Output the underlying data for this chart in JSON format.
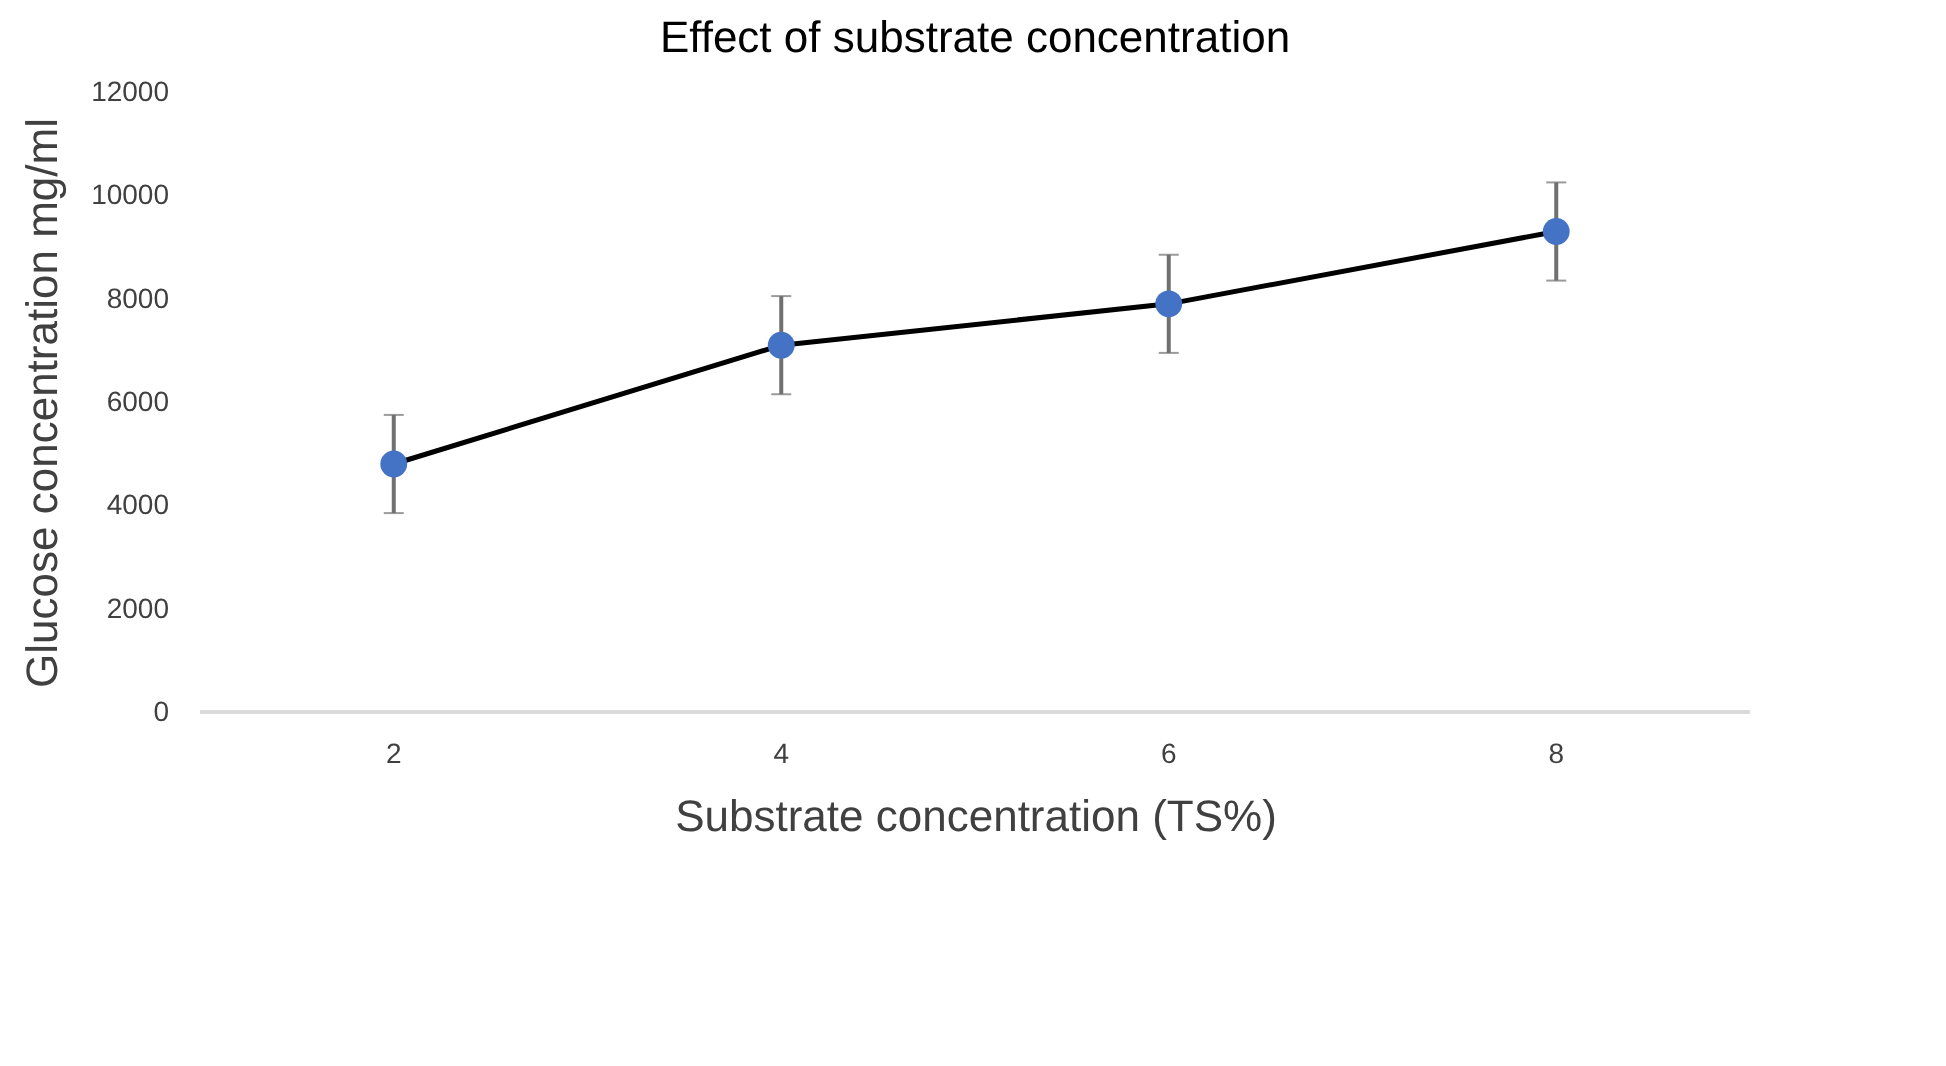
{
  "chart_data": {
    "type": "line",
    "title": "Effect of substrate concentration",
    "xlabel": "Substrate concentration (TS%)",
    "ylabel": "Glucose concentration mg/ml",
    "categories": [
      "2",
      "4",
      "6",
      "8"
    ],
    "series": [
      {
        "color": "#4472c4",
        "values": [
          4800,
          7100,
          7900,
          9300
        ],
        "errors": [
          950,
          950,
          950,
          950
        ]
      }
    ],
    "ylim": [
      0,
      12000
    ],
    "yticks": [
      0,
      2000,
      4000,
      6000,
      8000,
      10000,
      12000
    ],
    "grid": false,
    "marker": "circle",
    "line_style": "solid"
  }
}
